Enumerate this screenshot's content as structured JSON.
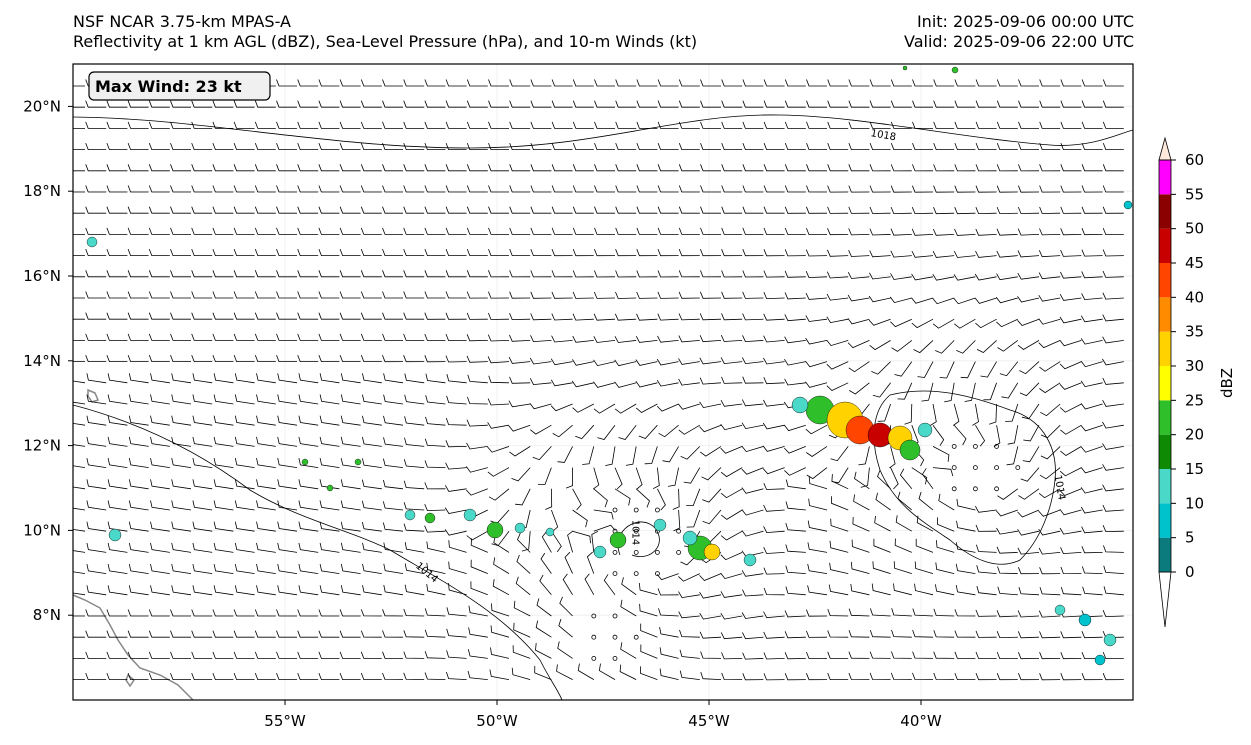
{
  "header": {
    "model": "NSF NCAR 3.75-km MPAS-A",
    "fields": "Reflectivity at 1 km AGL (dBZ), Sea-Level Pressure (hPa), and 10-m Winds (kt)",
    "init": "Init: 2025-09-06 00:00 UTC",
    "valid": "Valid: 2025-09-06 22:00 UTC"
  },
  "max_wind": "Max Wind: 23 kt",
  "map": {
    "lon_range": [
      -60,
      -35
    ],
    "lat_range": [
      6,
      21
    ],
    "lon_ticks": [
      {
        "value": -55,
        "label": "55°W"
      },
      {
        "value": -50,
        "label": "50°W"
      },
      {
        "value": -45,
        "label": "45°W"
      },
      {
        "value": -40,
        "label": "40°W"
      }
    ],
    "lat_ticks": [
      {
        "value": 8,
        "label": "8°N"
      },
      {
        "value": 10,
        "label": "10°N"
      },
      {
        "value": 12,
        "label": "12°N"
      },
      {
        "value": 14,
        "label": "14°N"
      },
      {
        "value": 16,
        "label": "16°N"
      },
      {
        "value": 18,
        "label": "18°N"
      },
      {
        "value": 20,
        "label": "20°N"
      }
    ],
    "isobar_labels": [
      {
        "text": "1018",
        "lon": -40.9,
        "lat": 19.25
      },
      {
        "text": "1014",
        "lon": -36.8,
        "lat": 11.0
      },
      {
        "text": "1014",
        "lon": -46.8,
        "lat": 9.95
      },
      {
        "text": "1014",
        "lon": -51.7,
        "lat": 8.95
      }
    ]
  },
  "colorbar": {
    "label": "dBZ",
    "ticks": [
      "0",
      "5",
      "10",
      "15",
      "20",
      "25",
      "30",
      "35",
      "40",
      "45",
      "50",
      "55",
      "60"
    ],
    "colors": [
      "#0b7b7e",
      "#00c2cc",
      "#4ad8c8",
      "#0f8a05",
      "#2fbf2a",
      "#ffff00",
      "#ffd200",
      "#ff8c00",
      "#ff4500",
      "#c80000",
      "#8b0000",
      "#ff00ff",
      "#ffe8dc"
    ]
  }
}
